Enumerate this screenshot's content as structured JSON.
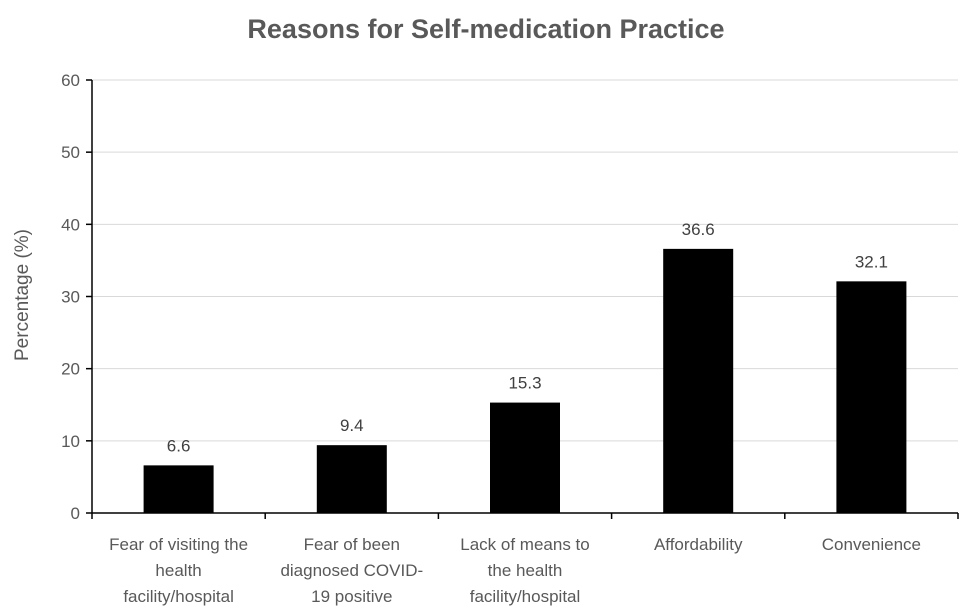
{
  "chart_data": {
    "type": "bar",
    "title": "Reasons for Self-medication Practice",
    "xlabel": "",
    "ylabel": "Percentage (%)",
    "ylim": [
      0,
      60
    ],
    "yticks": [
      0,
      10,
      20,
      30,
      40,
      50,
      60
    ],
    "grid": true,
    "legend": "none",
    "categories": [
      "Fear of visiting the health facility/hospital",
      "Fear of been diagnosed COVID-19 positive",
      "Lack of means to the health facility/hospital",
      "Affordability",
      "Convenience"
    ],
    "category_lines": [
      [
        "Fear of visiting the",
        "health",
        "facility/hospital"
      ],
      [
        "Fear of been",
        "diagnosed COVID-",
        "19 positive"
      ],
      [
        "Lack of means to",
        "the health",
        "facility/hospital"
      ],
      [
        "Affordability"
      ],
      [
        "Convenience"
      ]
    ],
    "values": [
      6.6,
      9.4,
      15.3,
      36.6,
      32.1
    ],
    "data_labels": [
      "6.6",
      "9.4",
      "15.3",
      "36.6",
      "32.1"
    ],
    "bar_color": "#000000"
  }
}
